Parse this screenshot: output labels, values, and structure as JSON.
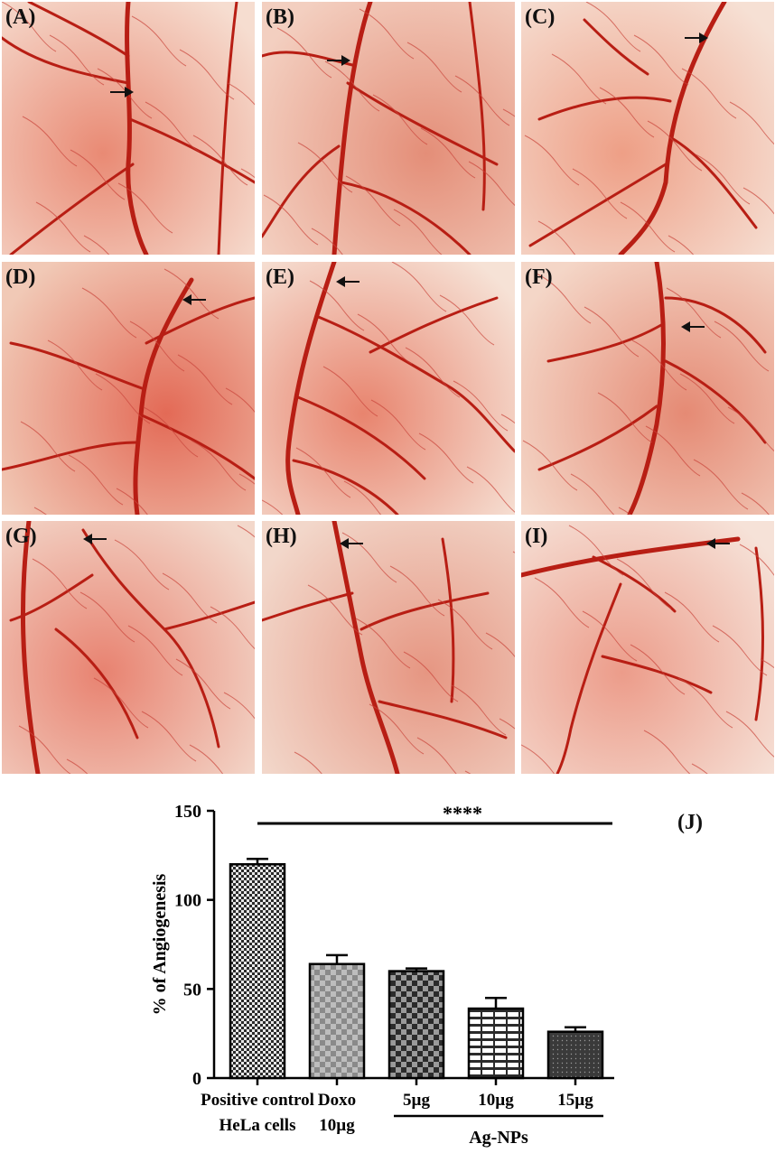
{
  "panels": [
    {
      "id": "A",
      "label": "(A)"
    },
    {
      "id": "B",
      "label": "(B)"
    },
    {
      "id": "C",
      "label": "(C)"
    },
    {
      "id": "D",
      "label": "(D)"
    },
    {
      "id": "E",
      "label": "(E)"
    },
    {
      "id": "F",
      "label": "(F)"
    },
    {
      "id": "G",
      "label": "(G)"
    },
    {
      "id": "H",
      "label": "(H)"
    },
    {
      "id": "I",
      "label": "(I)"
    }
  ],
  "chart_label": "(J)",
  "chart_data": {
    "type": "bar",
    "categories": [
      "Positive control HeLa cells",
      "Doxo 10µg",
      "5µg",
      "10µg",
      "15µg"
    ],
    "category_lines": [
      [
        "Positive control",
        "HeLa cells"
      ],
      [
        "Doxo",
        "10µg"
      ],
      [
        "5µg"
      ],
      [
        "10µg"
      ],
      [
        "15µg"
      ]
    ],
    "values": [
      120,
      64,
      60,
      39,
      26
    ],
    "errors": [
      3,
      5,
      1.5,
      6,
      2.5
    ],
    "ylabel": "% of Angiogenesis",
    "xlabel": "",
    "ylim": [
      0,
      150
    ],
    "yticks": [
      0,
      50,
      100,
      150
    ],
    "group_label": "Ag-NPs",
    "group_members": [
      "5µg",
      "10µg",
      "15µg"
    ],
    "significance": "****",
    "grid": false,
    "legend": "none",
    "colors": {
      "bar_fill_dark": "#2b2b2b",
      "bar_fill_light": "#8a8a8a",
      "axis": "#000000"
    }
  }
}
